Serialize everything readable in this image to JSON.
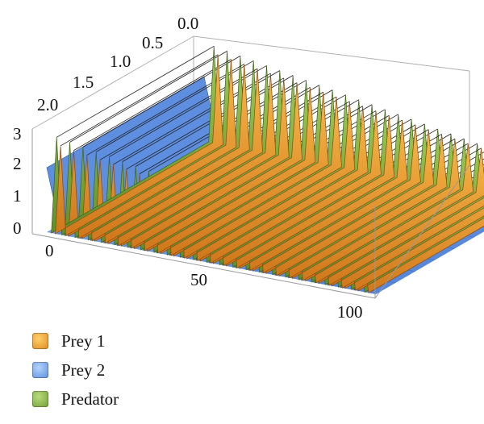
{
  "chart_data": {
    "type": "surface3d",
    "title": "",
    "x_axis": {
      "label": "",
      "range": [
        0,
        100
      ],
      "ticks": [
        "0",
        "50",
        "100"
      ]
    },
    "y_axis": {
      "label": "",
      "range": [
        0,
        2.0
      ],
      "ticks": [
        "0.0",
        "0.5",
        "1.0",
        "1.5",
        "2.0"
      ]
    },
    "z_axis": {
      "label": "",
      "range": [
        0,
        3
      ],
      "ticks": [
        "0",
        "1",
        "2",
        "3"
      ]
    },
    "boxed": true,
    "legend_position": "bottom-left",
    "series": [
      {
        "name": "Prey 1",
        "color": "#f0a030",
        "description_values": {
          "peaks_z_start": 3.0,
          "peaks_z_end": 1.0,
          "oscillating": true
        }
      },
      {
        "name": "Prey 2",
        "color": "#6f9be3",
        "description_values": {
          "z_start": 2.0,
          "z_steady": 0.0
        }
      },
      {
        "name": "Predator",
        "color": "#86b442",
        "description_values": {
          "peaks_z_start": 3.0,
          "peaks_z_end": 1.3,
          "oscillating": true
        }
      }
    ]
  },
  "legend": [
    {
      "label": "Prey 1",
      "color": "#f0a030"
    },
    {
      "label": "Prey 2",
      "color": "#6f9be3"
    },
    {
      "label": "Predator",
      "color": "#86b442"
    }
  ]
}
